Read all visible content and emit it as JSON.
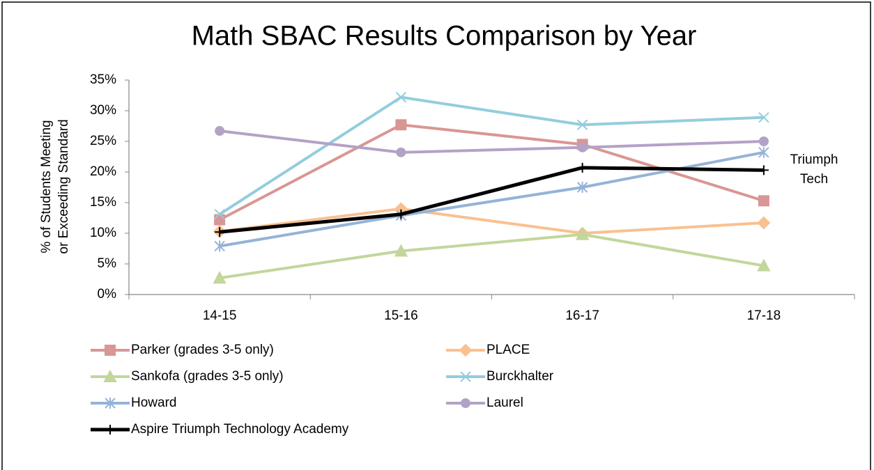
{
  "chart_data": {
    "type": "line",
    "title": "Math SBAC Results Comparison by Year",
    "ylabel": [
      "% of Students Meeting",
      "or Exceeding Standard"
    ],
    "categories": [
      "14-15",
      "15-16",
      "16-17",
      "17-18"
    ],
    "ylim": [
      0,
      35
    ],
    "yticks": [
      {
        "value": 0,
        "label": "0%"
      },
      {
        "value": 5,
        "label": "5%"
      },
      {
        "value": 10,
        "label": "10%"
      },
      {
        "value": 15,
        "label": "15%"
      },
      {
        "value": 20,
        "label": "20%"
      },
      {
        "value": 25,
        "label": "25%"
      },
      {
        "value": 30,
        "label": "30%"
      },
      {
        "value": 35,
        "label": "35%"
      }
    ],
    "annotation": [
      "Triumph",
      "Tech"
    ],
    "series": [
      {
        "name": "Parker (grades 3-5 only)",
        "color": "#d99694",
        "marker": "square",
        "values": [
          12.2,
          27.7,
          24.5,
          15.3
        ]
      },
      {
        "name": "PLACE",
        "color": "#fac090",
        "marker": "diamond",
        "values": [
          10.3,
          14.0,
          10.0,
          11.7
        ]
      },
      {
        "name": "Sankofa (grades 3-5 only)",
        "color": "#c3d69b",
        "marker": "triangle",
        "values": [
          2.7,
          7.1,
          9.8,
          4.7
        ]
      },
      {
        "name": "Burckhalter",
        "color": "#93cddd",
        "marker": "x",
        "values": [
          13.1,
          32.2,
          27.7,
          28.9
        ]
      },
      {
        "name": "Howard",
        "color": "#95b3d7",
        "marker": "asterisk",
        "values": [
          7.9,
          12.9,
          17.5,
          23.2
        ]
      },
      {
        "name": "Laurel",
        "color": "#b3a2c7",
        "marker": "circle",
        "values": [
          26.7,
          23.2,
          24.0,
          25.0
        ]
      },
      {
        "name": "Aspire Triumph Technology Academy",
        "color": "#000000",
        "marker": "plus",
        "values": [
          10.2,
          13.1,
          20.7,
          20.3
        ]
      }
    ]
  }
}
